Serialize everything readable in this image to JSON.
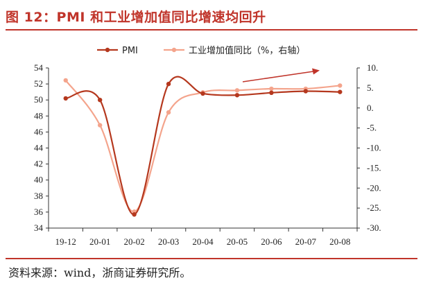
{
  "title": "图 12：PMI 和工业增加值同比增速均回升",
  "source": "资料来源：wind，浙商证券研究所。",
  "chart_data": {
    "type": "line",
    "categories": [
      "19-12",
      "20-01",
      "20-02",
      "20-03",
      "20-04",
      "20-05",
      "20-06",
      "20-07",
      "20-08"
    ],
    "series": [
      {
        "name": "PMI",
        "axis": "left",
        "color": "#b5381e",
        "values": [
          50.2,
          50.0,
          35.7,
          52.0,
          50.8,
          50.6,
          50.9,
          51.1,
          51.0
        ]
      },
      {
        "name": "工业增加值同比（%，右轴）",
        "axis": "right",
        "color": "#f4a48c",
        "values": [
          6.9,
          -4.3,
          -25.9,
          -1.1,
          3.9,
          4.4,
          4.8,
          4.8,
          5.6
        ]
      }
    ],
    "left_axis": {
      "min": 34,
      "max": 54,
      "step": 2,
      "tick_labels": [
        "34",
        "36",
        "38",
        "40",
        "42",
        "44",
        "46",
        "48",
        "50",
        "52",
        "54"
      ]
    },
    "right_axis": {
      "min": -30,
      "max": 10,
      "step": 5,
      "tick_labels": [
        "-30.",
        "-25.",
        "-20.",
        "-15.",
        "-10.",
        "-5.",
        "0.",
        "5.",
        "10."
      ]
    },
    "legend": {
      "position": "top"
    },
    "annotation": {
      "type": "trend-arrow",
      "color": "#c0342a"
    },
    "grid": false
  }
}
